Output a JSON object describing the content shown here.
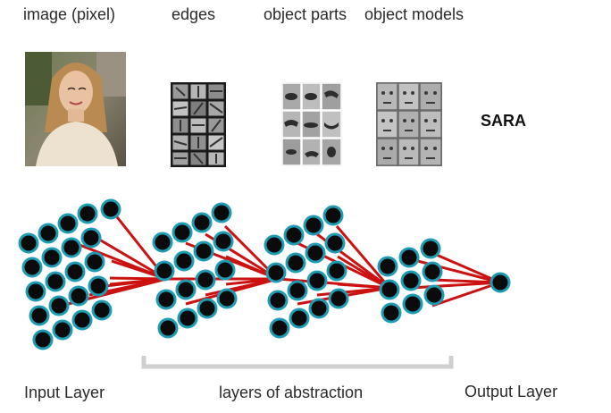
{
  "header_labels": {
    "image": "image (pixel)",
    "edges": "edges",
    "parts": "object parts",
    "models": "object models"
  },
  "result_name": "SARA",
  "bottom_labels": {
    "input": "Input Layer",
    "hidden": "layers of abstraction",
    "output": "Output Layer"
  },
  "colors": {
    "node_fill": "#0b0b0b",
    "node_ring": "#1f9bb3",
    "edge": "#cc1111",
    "bracket": "#cfcfcf"
  },
  "icons": {
    "photo": "portrait-photo-icon",
    "edges": "edge-filters-icon",
    "parts": "face-parts-icon",
    "models": "face-models-icon"
  }
}
